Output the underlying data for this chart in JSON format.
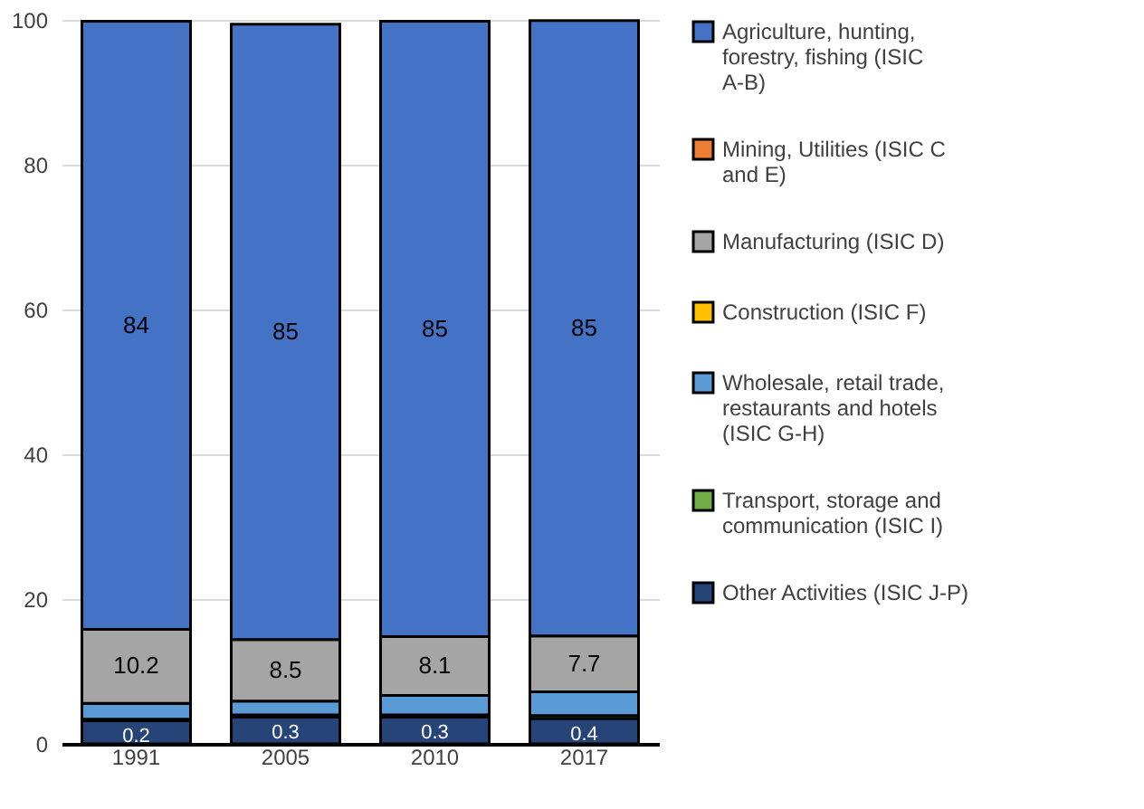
{
  "chart_data": {
    "type": "bar",
    "stacked": true,
    "categories": [
      "1991",
      "2005",
      "2010",
      "2017"
    ],
    "series": [
      {
        "name": "Other Activities (ISIC J-P)",
        "color": "#264478",
        "values": [
          3.2,
          3.7,
          3.7,
          3.5
        ]
      },
      {
        "name": "Transport, storage and communication (ISIC I)",
        "color": "#70ad47",
        "values": [
          0.2,
          0.3,
          0.3,
          0.4
        ],
        "value_labels": [
          "0.2",
          "0.3",
          "0.3",
          "0.4"
        ]
      },
      {
        "name": "Wholesale, retail trade, restaurants and hotels (ISIC G-H)",
        "color": "#5b9bd5",
        "values": [
          2.2,
          1.9,
          2.7,
          3.3
        ]
      },
      {
        "name": "Construction (ISIC F)",
        "color": "#ffc000",
        "values": [
          null,
          null,
          null,
          null
        ]
      },
      {
        "name": "Manufacturing (ISIC D)",
        "color": "#a5a5a5",
        "values": [
          10.2,
          8.5,
          8.1,
          7.7
        ],
        "value_labels": [
          "10.2",
          "8.5",
          "8.1",
          "7.7"
        ]
      },
      {
        "name": "Mining, Utilities (ISIC C and E)",
        "color": "#ed7d31",
        "values": [
          null,
          null,
          null,
          null
        ]
      },
      {
        "name": "Agriculture, hunting, forestry, fishing (ISIC A-B)",
        "color": "#4472c4",
        "values": [
          84,
          85,
          85,
          85
        ],
        "value_labels": [
          "84",
          "85",
          "85",
          "85"
        ]
      }
    ],
    "ylim": [
      0,
      100
    ],
    "yticks": [
      0,
      20,
      40,
      60,
      80,
      100
    ],
    "grid": "y",
    "legend": "right"
  }
}
